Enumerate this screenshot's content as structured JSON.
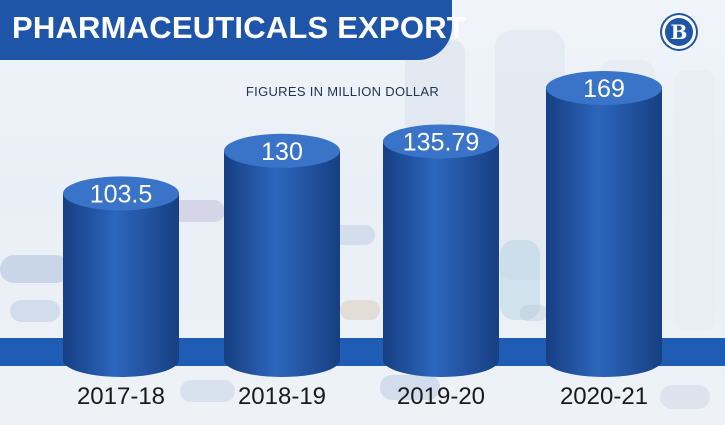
{
  "header": {
    "title": "PHARMACEUTICALS EXPORT",
    "subtitle": "FIGURES IN MILLION DOLLAR",
    "logo_text": "B"
  },
  "colors": {
    "banner": "#1f55a8",
    "bar_light": "#2c66bd",
    "bar_dark": "#173f82",
    "bar_top": "#3a74c9",
    "base_band": "#1f5cb3"
  },
  "chart_data": {
    "type": "bar",
    "title": "PHARMACEUTICALS EXPORT",
    "subtitle": "FIGURES IN MILLION DOLLAR",
    "categories": [
      "2017-18",
      "2018-19",
      "2019-20",
      "2020-21"
    ],
    "values": [
      103.5,
      130,
      135.79,
      169
    ],
    "value_labels": [
      "103.5",
      "130",
      "135.79",
      "169"
    ],
    "xlabel": "",
    "ylabel": "",
    "ylim": [
      0,
      169
    ],
    "grid": false,
    "legend": "none"
  }
}
